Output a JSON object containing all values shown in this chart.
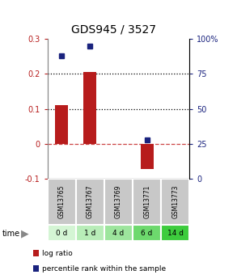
{
  "title": "GDS945 / 3527",
  "categories": [
    "GSM13765",
    "GSM13767",
    "GSM13769",
    "GSM13771",
    "GSM13773"
  ],
  "time_labels": [
    "0 d",
    "1 d",
    "4 d",
    "6 d",
    "14 d"
  ],
  "log_ratio": [
    0.11,
    0.205,
    0.0,
    -0.072,
    0.0
  ],
  "percentile": [
    88,
    95,
    null,
    28,
    null
  ],
  "ylim_left": [
    -0.1,
    0.3
  ],
  "ylim_right": [
    0,
    100
  ],
  "bar_color": "#b71c1c",
  "dot_color": "#1a237e",
  "time_label_colors": [
    "#d4f5d4",
    "#b8edb8",
    "#9de59d",
    "#6dd96d",
    "#3dcc3d"
  ],
  "gsm_bg_color": "#c8c8c8",
  "legend_red_label": "log ratio",
  "legend_blue_label": "percentile rank within the sample",
  "title_fontsize": 10,
  "tick_fontsize": 7,
  "label_fontsize": 7
}
